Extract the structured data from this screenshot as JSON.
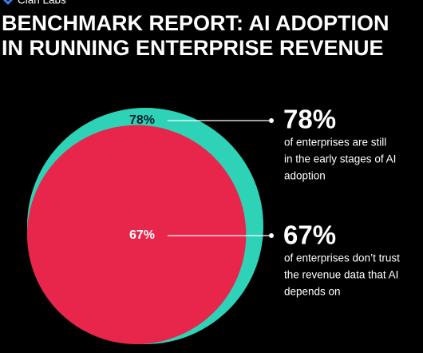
{
  "chart_data": {
    "type": "nested-circles",
    "brand": "Clari Labs",
    "title": [
      "BENCHMARK REPORT: AI ADOPTION",
      "IN RUNNING ENTERPRISE REVENUE"
    ],
    "values": [
      78,
      67
    ],
    "value_labels": [
      "78%",
      "67%"
    ],
    "colors": [
      "#2ed3b7",
      "#e8264b"
    ],
    "label_colors": [
      "#0b1e2a",
      "#ffffff"
    ],
    "descriptions": [
      [
        "of enterprises are still",
        "in the early stages of AI",
        "adoption"
      ],
      [
        "of enterprises don’t trust",
        "the revenue data that AI",
        "depends on"
      ]
    ]
  }
}
